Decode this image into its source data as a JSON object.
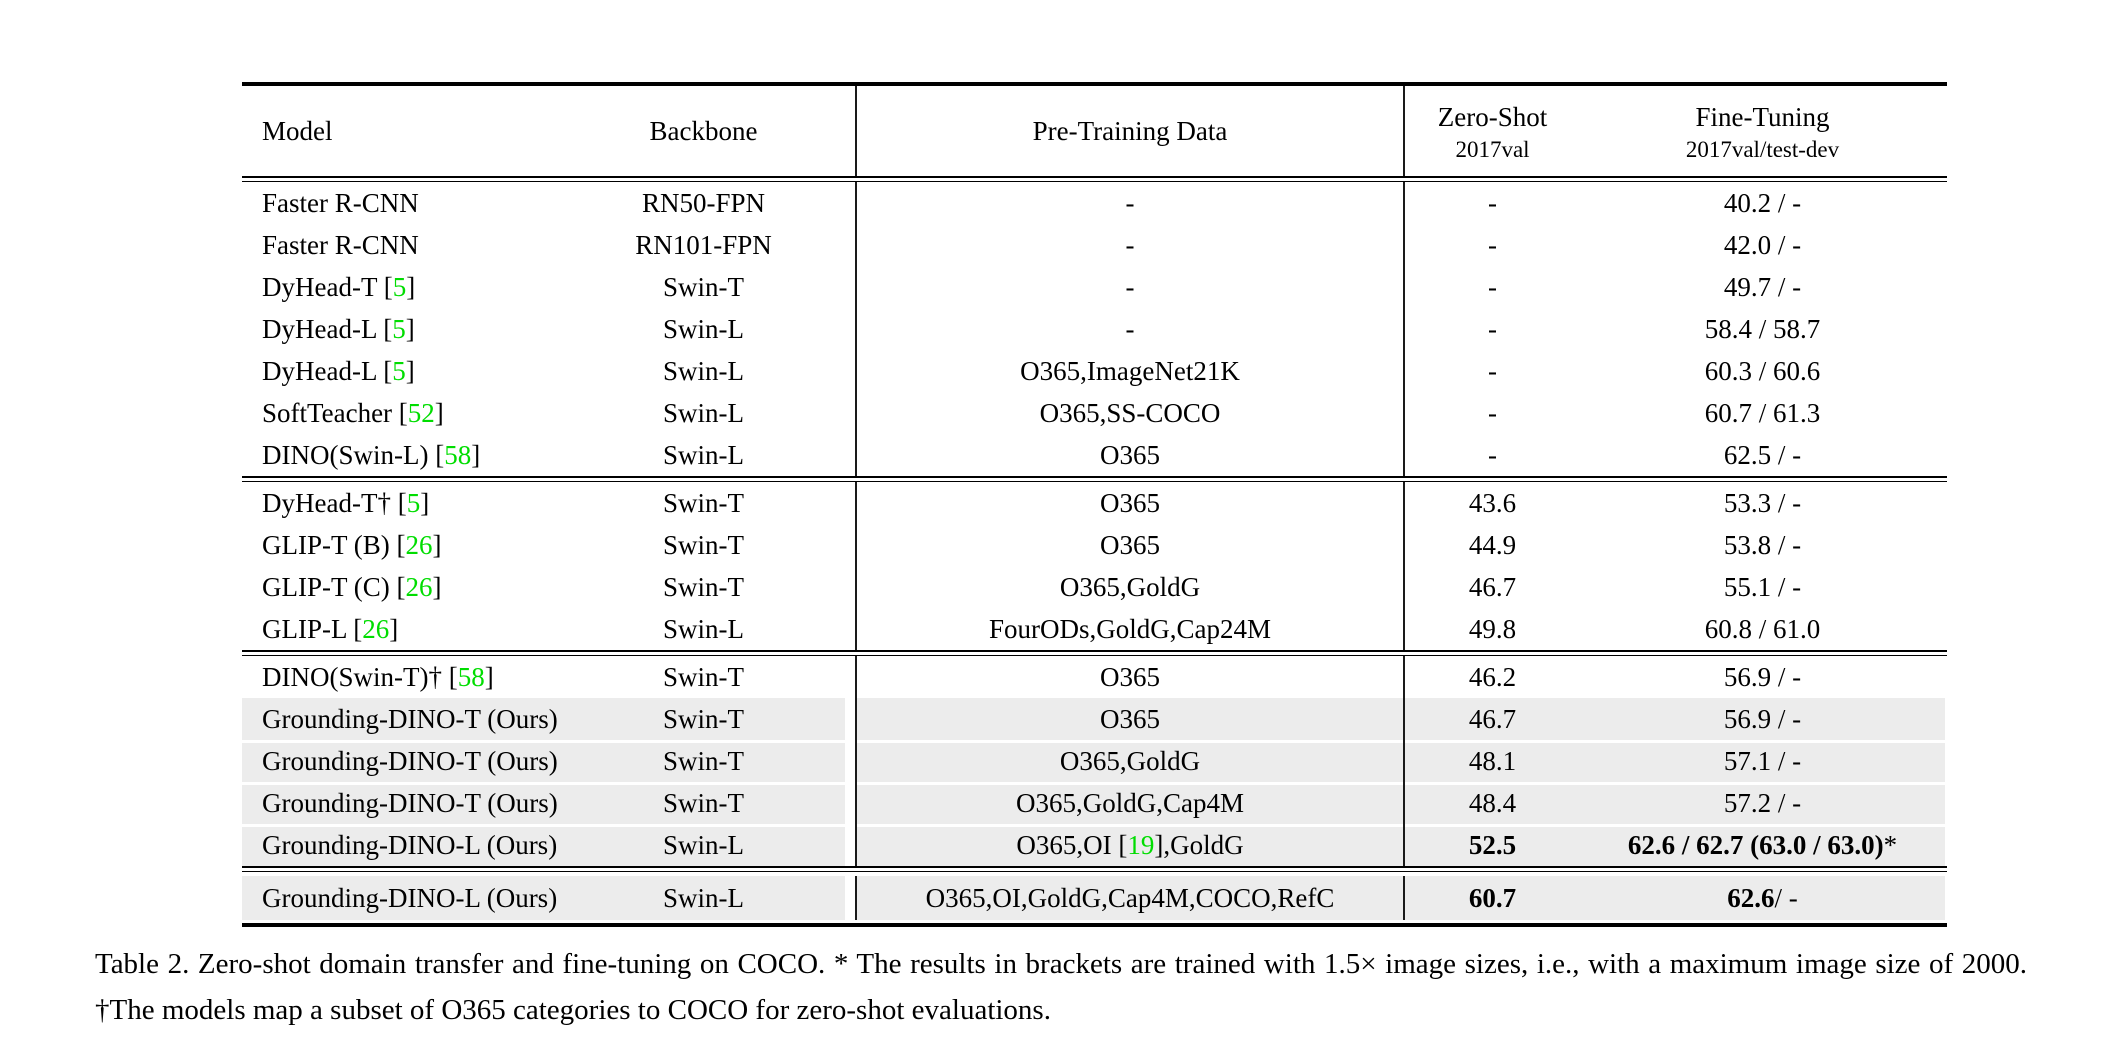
{
  "colors": {
    "citation_green": "#00dd00",
    "row_highlight": "#ececec",
    "text": "#000000",
    "background": "#ffffff"
  },
  "header": {
    "model": "Model",
    "backbone": "Backbone",
    "pretrain": "Pre-Training Data",
    "zeroshot_line1": "Zero-Shot",
    "zeroshot_line2": "2017val",
    "finetune_line1": "Fine-Tuning",
    "finetune_line2": "2017val/test-dev"
  },
  "table": {
    "sections": [
      {
        "rows": [
          {
            "cells": [
              [
                {
                  "t": "Faster R-CNN"
                }
              ],
              [
                {
                  "t": "RN50-FPN"
                }
              ],
              [
                {
                  "t": "-"
                }
              ],
              [
                {
                  "t": "-"
                }
              ],
              [
                {
                  "t": "40.2 / -"
                }
              ]
            ]
          },
          {
            "cells": [
              [
                {
                  "t": "Faster R-CNN"
                }
              ],
              [
                {
                  "t": "RN101-FPN"
                }
              ],
              [
                {
                  "t": "-"
                }
              ],
              [
                {
                  "t": "-"
                }
              ],
              [
                {
                  "t": "42.0 / -"
                }
              ]
            ]
          },
          {
            "cells": [
              [
                {
                  "t": "DyHead-T ["
                },
                {
                  "t": "5",
                  "g": true
                },
                {
                  "t": "]"
                }
              ],
              [
                {
                  "t": "Swin-T"
                }
              ],
              [
                {
                  "t": "-"
                }
              ],
              [
                {
                  "t": "-"
                }
              ],
              [
                {
                  "t": "49.7 / -"
                }
              ]
            ]
          },
          {
            "cells": [
              [
                {
                  "t": "DyHead-L ["
                },
                {
                  "t": "5",
                  "g": true
                },
                {
                  "t": "]"
                }
              ],
              [
                {
                  "t": "Swin-L"
                }
              ],
              [
                {
                  "t": "-"
                }
              ],
              [
                {
                  "t": "-"
                }
              ],
              [
                {
                  "t": "58.4 / 58.7"
                }
              ]
            ]
          },
          {
            "cells": [
              [
                {
                  "t": "DyHead-L ["
                },
                {
                  "t": "5",
                  "g": true
                },
                {
                  "t": "]"
                }
              ],
              [
                {
                  "t": "Swin-L"
                }
              ],
              [
                {
                  "t": "O365,ImageNet21K"
                }
              ],
              [
                {
                  "t": "-"
                }
              ],
              [
                {
                  "t": "60.3 / 60.6"
                }
              ]
            ]
          },
          {
            "cells": [
              [
                {
                  "t": "SoftTeacher ["
                },
                {
                  "t": "52",
                  "g": true
                },
                {
                  "t": "]"
                }
              ],
              [
                {
                  "t": "Swin-L"
                }
              ],
              [
                {
                  "t": "O365,SS-COCO"
                }
              ],
              [
                {
                  "t": "-"
                }
              ],
              [
                {
                  "t": "60.7 / 61.3"
                }
              ]
            ]
          },
          {
            "cells": [
              [
                {
                  "t": "DINO(Swin-L) ["
                },
                {
                  "t": "58",
                  "g": true
                },
                {
                  "t": "]"
                }
              ],
              [
                {
                  "t": "Swin-L"
                }
              ],
              [
                {
                  "t": "O365"
                }
              ],
              [
                {
                  "t": "-"
                }
              ],
              [
                {
                  "t": "62.5 / -"
                }
              ]
            ]
          }
        ]
      },
      {
        "rows": [
          {
            "cells": [
              [
                {
                  "t": "DyHead-T† ["
                },
                {
                  "t": "5",
                  "g": true
                },
                {
                  "t": "]"
                }
              ],
              [
                {
                  "t": "Swin-T"
                }
              ],
              [
                {
                  "t": "O365"
                }
              ],
              [
                {
                  "t": "43.6"
                }
              ],
              [
                {
                  "t": "53.3 / -"
                }
              ]
            ]
          },
          {
            "cells": [
              [
                {
                  "t": "GLIP-T (B) ["
                },
                {
                  "t": "26",
                  "g": true
                },
                {
                  "t": "]"
                }
              ],
              [
                {
                  "t": "Swin-T"
                }
              ],
              [
                {
                  "t": "O365"
                }
              ],
              [
                {
                  "t": "44.9"
                }
              ],
              [
                {
                  "t": "53.8 / -"
                }
              ]
            ]
          },
          {
            "cells": [
              [
                {
                  "t": "GLIP-T (C) ["
                },
                {
                  "t": "26",
                  "g": true
                },
                {
                  "t": "]"
                }
              ],
              [
                {
                  "t": "Swin-T"
                }
              ],
              [
                {
                  "t": "O365,GoldG"
                }
              ],
              [
                {
                  "t": "46.7"
                }
              ],
              [
                {
                  "t": "55.1 / -"
                }
              ]
            ]
          },
          {
            "cells": [
              [
                {
                  "t": "GLIP-L ["
                },
                {
                  "t": "26",
                  "g": true
                },
                {
                  "t": "]"
                }
              ],
              [
                {
                  "t": "Swin-L"
                }
              ],
              [
                {
                  "t": "FourODs,GoldG,Cap24M"
                }
              ],
              [
                {
                  "t": "49.8"
                }
              ],
              [
                {
                  "t": "60.8 / 61.0"
                }
              ]
            ]
          }
        ]
      },
      {
        "rows": [
          {
            "cells": [
              [
                {
                  "t": "DINO(Swin-T)† ["
                },
                {
                  "t": "58",
                  "g": true
                },
                {
                  "t": "]"
                }
              ],
              [
                {
                  "t": "Swin-T"
                }
              ],
              [
                {
                  "t": "O365"
                }
              ],
              [
                {
                  "t": "46.2"
                }
              ],
              [
                {
                  "t": "56.9 / -"
                }
              ]
            ]
          },
          {
            "cells": [
              [
                {
                  "t": "Grounding-DINO-T (Ours)"
                }
              ],
              [
                {
                  "t": "Swin-T"
                }
              ],
              [
                {
                  "t": "O365"
                }
              ],
              [
                {
                  "t": "46.7"
                }
              ],
              [
                {
                  "t": "56.9 / -"
                }
              ]
            ]
          },
          {
            "cells": [
              [
                {
                  "t": "Grounding-DINO-T (Ours)"
                }
              ],
              [
                {
                  "t": "Swin-T"
                }
              ],
              [
                {
                  "t": "O365,GoldG"
                }
              ],
              [
                {
                  "t": "48.1"
                }
              ],
              [
                {
                  "t": "57.1 / -"
                }
              ]
            ]
          },
          {
            "cells": [
              [
                {
                  "t": "Grounding-DINO-T (Ours)"
                }
              ],
              [
                {
                  "t": "Swin-T"
                }
              ],
              [
                {
                  "t": "O365,GoldG,Cap4M"
                }
              ],
              [
                {
                  "t": "48.4"
                }
              ],
              [
                {
                  "t": "57.2 / -"
                }
              ]
            ]
          },
          {
            "cells": [
              [
                {
                  "t": "Grounding-DINO-L (Ours)"
                }
              ],
              [
                {
                  "t": "Swin-L"
                }
              ],
              [
                {
                  "t": "O365,OI ["
                },
                {
                  "t": "19",
                  "g": true
                },
                {
                  "t": "],GoldG"
                }
              ],
              [
                {
                  "t": "52.5",
                  "b": true
                }
              ],
              [
                {
                  "t": "62.6 / 62.7 (63.0 / 63.0)",
                  "b": true
                },
                {
                  "t": "*"
                }
              ]
            ]
          }
        ]
      },
      {
        "rows": [
          {
            "cells": [
              [
                {
                  "t": "Grounding-DINO-L (Ours)"
                }
              ],
              [
                {
                  "t": "Swin-L"
                }
              ],
              [
                {
                  "t": "O365,OI,GoldG,Cap4M,COCO,RefC"
                }
              ],
              [
                {
                  "t": "60.7",
                  "b": true
                }
              ],
              [
                {
                  "t": "62.6",
                  "b": true
                },
                {
                  "t": " / -"
                }
              ]
            ]
          }
        ]
      }
    ]
  },
  "caption": {
    "text": "Table 2. Zero-shot domain transfer and fine-tuning on COCO. * The results in brackets are trained with 1.5× image sizes, i.e., with a maximum image size of 2000. †The models map a subset of O365 categories to COCO for zero-shot evaluations."
  }
}
